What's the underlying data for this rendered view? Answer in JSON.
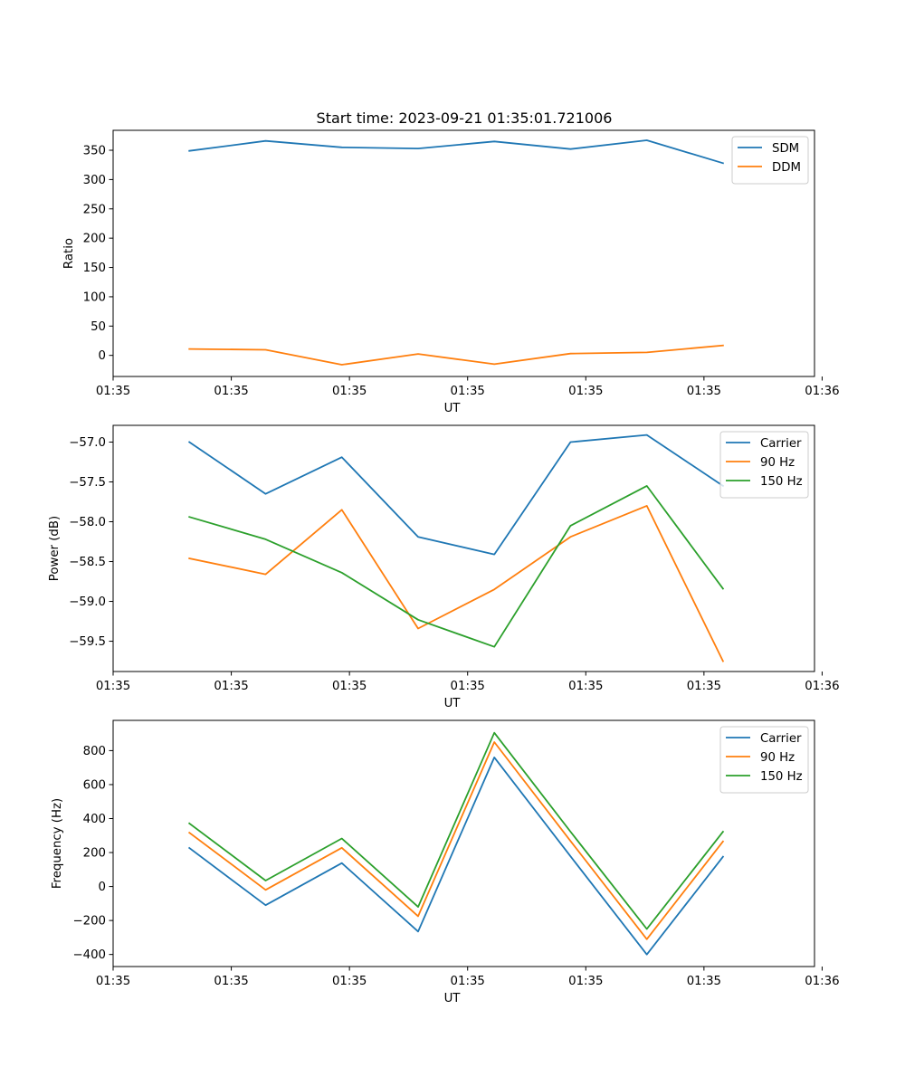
{
  "title": "Start time: 2023-09-21 01:35:01.721006",
  "colors": {
    "blue": "#1f77b4",
    "orange": "#ff7f0e",
    "green": "#2ca02c"
  },
  "chart_data": [
    {
      "type": "line",
      "title": "Start time: 2023-09-21 01:35:01.721006",
      "xlabel": "UT",
      "ylabel": "Ratio",
      "x_index": [
        1,
        2,
        3,
        4,
        5,
        6,
        7,
        8
      ],
      "xlim": [
        0,
        9.2
      ],
      "xticks": [
        {
          "pos": 0,
          "label": "01:35"
        },
        {
          "pos": 1.55,
          "label": "01:35"
        },
        {
          "pos": 3.1,
          "label": "01:35"
        },
        {
          "pos": 4.65,
          "label": "01:35"
        },
        {
          "pos": 6.2,
          "label": "01:35"
        },
        {
          "pos": 7.75,
          "label": "01:35"
        },
        {
          "pos": 9.3,
          "label": "01:36"
        }
      ],
      "ylim": [
        -36,
        384
      ],
      "yticks": [
        0,
        50,
        100,
        150,
        200,
        250,
        300,
        350
      ],
      "legend": "top-right",
      "series": [
        {
          "name": "SDM",
          "color": "#1f77b4",
          "values": [
            349,
            366,
            355,
            353,
            365,
            352,
            367,
            328
          ]
        },
        {
          "name": "DDM",
          "color": "#ff7f0e",
          "values": [
            11,
            9.5,
            -16,
            2.5,
            -15,
            3,
            5,
            17
          ]
        }
      ]
    },
    {
      "type": "line",
      "title": "",
      "xlabel": "UT",
      "ylabel": "Power (dB)",
      "x_index": [
        1,
        2,
        3,
        4,
        5,
        6,
        7,
        8
      ],
      "xlim": [
        0,
        9.2
      ],
      "xticks": [
        {
          "pos": 0,
          "label": "01:35"
        },
        {
          "pos": 1.55,
          "label": "01:35"
        },
        {
          "pos": 3.1,
          "label": "01:35"
        },
        {
          "pos": 4.65,
          "label": "01:35"
        },
        {
          "pos": 6.2,
          "label": "01:35"
        },
        {
          "pos": 7.75,
          "label": "01:35"
        },
        {
          "pos": 9.3,
          "label": "01:36"
        }
      ],
      "ylim": [
        -59.88,
        -56.79
      ],
      "yticks": [
        -59.5,
        -59.0,
        -58.5,
        -58.0,
        -57.5,
        -57.0
      ],
      "legend": "top-right",
      "series": [
        {
          "name": "Carrier",
          "color": "#1f77b4",
          "values": [
            -57.0,
            -57.65,
            -57.19,
            -58.19,
            -58.41,
            -57.0,
            -56.91,
            -57.55
          ]
        },
        {
          "name": "90 Hz",
          "color": "#ff7f0e",
          "values": [
            -58.46,
            -58.66,
            -57.85,
            -59.34,
            -58.85,
            -58.19,
            -57.8,
            -59.75
          ]
        },
        {
          "name": "150 Hz",
          "color": "#2ca02c",
          "values": [
            -57.94,
            -58.22,
            -58.64,
            -59.23,
            -59.57,
            -58.05,
            -57.55,
            -58.84
          ]
        }
      ]
    },
    {
      "type": "line",
      "title": "",
      "xlabel": "UT",
      "ylabel": "Frequency (Hz)",
      "x_index": [
        1,
        2,
        3,
        4,
        5,
        6,
        7,
        8
      ],
      "xlim": [
        0,
        9.2
      ],
      "xticks": [
        {
          "pos": 0,
          "label": "01:35"
        },
        {
          "pos": 1.55,
          "label": "01:35"
        },
        {
          "pos": 3.1,
          "label": "01:35"
        },
        {
          "pos": 4.65,
          "label": "01:35"
        },
        {
          "pos": 6.2,
          "label": "01:35"
        },
        {
          "pos": 7.75,
          "label": "01:35"
        },
        {
          "pos": 9.3,
          "label": "01:36"
        }
      ],
      "ylim": [
        -471,
        978
      ],
      "yticks": [
        -400,
        -200,
        0,
        200,
        400,
        600,
        800
      ],
      "legend": "top-right",
      "series": [
        {
          "name": "Carrier",
          "color": "#1f77b4",
          "values": [
            227,
            -110,
            138,
            -265,
            760,
            178,
            -400,
            175
          ]
        },
        {
          "name": "90 Hz",
          "color": "#ff7f0e",
          "values": [
            317,
            -20,
            228,
            -175,
            850,
            268,
            -310,
            265
          ]
        },
        {
          "name": "150 Hz",
          "color": "#2ca02c",
          "values": [
            372,
            35,
            283,
            -120,
            905,
            323,
            -250,
            323
          ]
        }
      ]
    }
  ]
}
